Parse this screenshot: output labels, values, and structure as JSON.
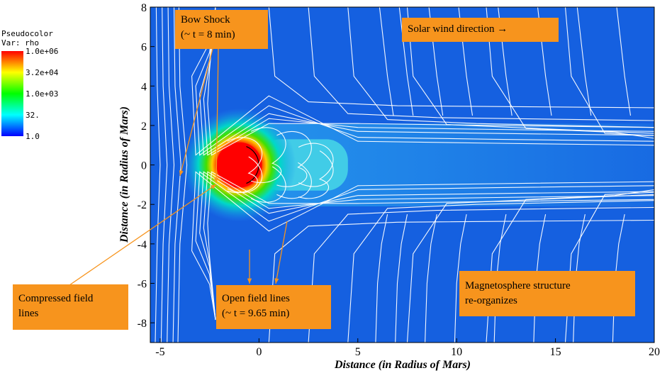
{
  "legend": {
    "title": "Pseudocolor",
    "var": "Var: rho",
    "ticks": [
      "1.0e+06",
      "3.2e+04",
      "1.0e+03",
      "32.",
      "1.0"
    ],
    "colors": [
      "#ff0000",
      "#ffff00",
      "#00ff00",
      "#00ffff",
      "#0000ff"
    ]
  },
  "annotations": {
    "bow_shock": [
      "Bow Shock",
      "(~ t = 8 min)"
    ],
    "solar_wind": "Solar wind direction →",
    "compressed": [
      "Compressed field",
      "lines"
    ],
    "open": [
      "Open field lines",
      "(~ t = 9.65 min)"
    ],
    "magneto": [
      "Magnetosphere structure",
      "re-organizes"
    ]
  },
  "chart_data": {
    "type": "heatmap",
    "title": "",
    "xlabel": "Distance (in Radius of Mars)",
    "ylabel": "Distance (in Radius of Mars)",
    "xlim": [
      -5.5,
      20
    ],
    "ylim": [
      -9,
      8
    ],
    "xticks": [
      -5,
      0,
      5,
      10,
      15,
      20
    ],
    "yticks": [
      8,
      6,
      4,
      2,
      0,
      -2,
      -4,
      -6,
      -8
    ],
    "variable": "rho",
    "colorbar_scale": "log",
    "colorbar_range": [
      1.0,
      1000000.0
    ],
    "planet_center": [
      -1,
      0
    ],
    "grid": false
  },
  "colors": {
    "annotation": "#f7941d",
    "arrow": "#f7941d",
    "background_field": "#1560e0"
  }
}
